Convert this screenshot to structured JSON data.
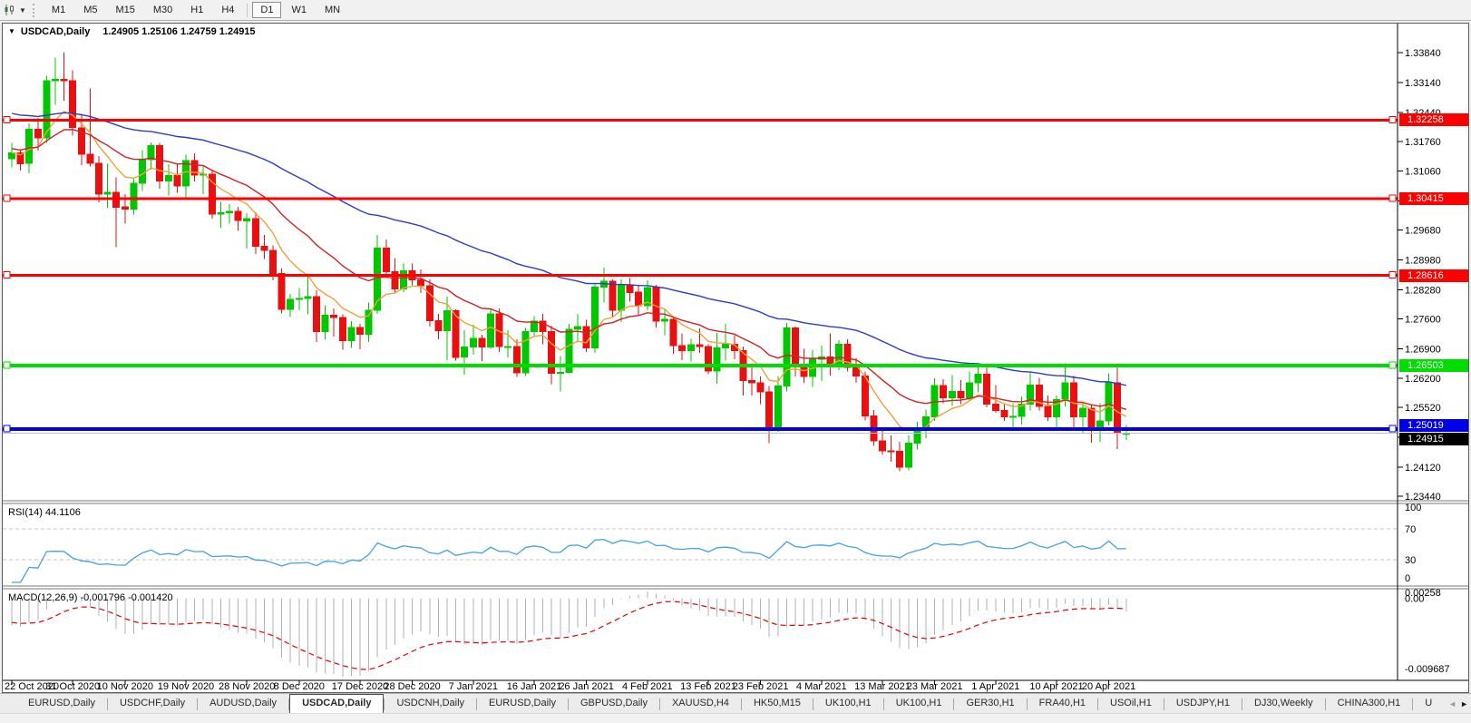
{
  "toolbar": {
    "timeframe_groups": [
      [
        "M1",
        "M5",
        "M15",
        "M30",
        "H1",
        "H4"
      ],
      [
        "D1",
        "W1",
        "MN"
      ]
    ],
    "active_timeframe": "D1"
  },
  "chart": {
    "symbol_title": "USDCAD,Daily",
    "ohlc_line": "1.24905 1.25106 1.24759 1.24915"
  },
  "indicators": {
    "rsi_label": "RSI(14) 44.1106",
    "macd_label": "MACD(12,26,9) -0.001796 -0.001420"
  },
  "chart_data": {
    "type": "candlestick",
    "symbol": "USDCAD",
    "timeframe": "Daily",
    "last_ohlc": {
      "open": 1.24905,
      "high": 1.25106,
      "low": 1.24759,
      "close": 1.24915
    },
    "colors": {
      "bull": "#00c800",
      "bear": "#e81010",
      "current_line": "#c0c0c0",
      "current_chip_bg": "#000000"
    },
    "price_ticks": [
      "1.33840",
      "1.33140",
      "1.32440",
      "1.31760",
      "1.31060",
      "1.30360",
      "1.29680",
      "1.28980",
      "1.28280",
      "1.27600",
      "1.26900",
      "1.26200",
      "1.25520",
      "1.24820",
      "1.24120",
      "1.23440"
    ],
    "hlines": [
      {
        "price": 1.32258,
        "label": "1.32258",
        "color": "#ff0000",
        "thickness": 3
      },
      {
        "price": 1.30415,
        "label": "1.30415",
        "color": "#ff0000",
        "thickness": 3
      },
      {
        "price": 1.28616,
        "label": "1.28616",
        "color": "#ff0000",
        "thickness": 3
      },
      {
        "price": 1.26503,
        "label": "1.26503",
        "color": "#00dd00",
        "thickness": 4
      },
      {
        "price": 1.25019,
        "label": "1.25019",
        "color": "#0000e6",
        "thickness": 4
      }
    ],
    "current_price": {
      "price": 1.24915,
      "label": "1.24915"
    },
    "moving_averages": [
      {
        "name": "fast",
        "period": 8,
        "color": "#eea23a",
        "seed": 1.315
      },
      {
        "name": "medium",
        "period": 20,
        "color": "#d42020",
        "seed": 1.316
      },
      {
        "name": "slow",
        "period": 55,
        "color": "#2b3cc8",
        "seed": 1.3245
      }
    ],
    "rsi": {
      "period": 14,
      "value": 44.1106,
      "color": "#47a0e0",
      "levels": [
        70,
        30
      ],
      "axis_labels": [
        "100",
        "70",
        "30",
        "0"
      ]
    },
    "macd": {
      "fast": 12,
      "slow": 26,
      "signal": 9,
      "histogram_color": "#b2b2b2",
      "signal_color": "#e80000",
      "axis_labels": {
        "top": "0.00258",
        "zero": "0.00",
        "bottom": "-0.009687"
      },
      "seeds": {
        "fast": 1.318,
        "slow": 1.3215,
        "signal": -0.003
      }
    },
    "date_ticks": [
      {
        "label": "22 Oct 2020",
        "i": 0
      },
      {
        "label": "31 Oct 2020",
        "i": 7
      },
      {
        "label": "10 Nov 2020",
        "i": 13
      },
      {
        "label": "19 Nov 2020",
        "i": 20
      },
      {
        "label": "28 Nov 2020",
        "i": 27
      },
      {
        "label": "8 Dec 2020",
        "i": 33
      },
      {
        "label": "17 Dec 2020",
        "i": 40
      },
      {
        "label": "28 Dec 2020",
        "i": 46
      },
      {
        "label": "7 Jan 2021",
        "i": 53
      },
      {
        "label": "16 Jan 2021",
        "i": 60
      },
      {
        "label": "26 Jan 2021",
        "i": 66
      },
      {
        "label": "4 Feb 2021",
        "i": 73
      },
      {
        "label": "13 Feb 2021",
        "i": 80
      },
      {
        "label": "23 Feb 2021",
        "i": 86
      },
      {
        "label": "4 Mar 2021",
        "i": 93
      },
      {
        "label": "13 Mar 2021",
        "i": 100
      },
      {
        "label": "23 Mar 2021",
        "i": 106
      },
      {
        "label": "1 Apr 2021",
        "i": 113
      },
      {
        "label": "10 Apr 2021",
        "i": 120
      },
      {
        "label": "20 Apr 2021",
        "i": 126
      }
    ],
    "candles": [
      [
        1.3135,
        1.3172,
        1.3115,
        1.3149
      ],
      [
        1.3149,
        1.3158,
        1.3108,
        1.3124
      ],
      [
        1.3124,
        1.3218,
        1.3101,
        1.3204
      ],
      [
        1.3204,
        1.3231,
        1.3154,
        1.3184
      ],
      [
        1.3184,
        1.333,
        1.3172,
        1.3318
      ],
      [
        1.3318,
        1.3372,
        1.3262,
        1.3321
      ],
      [
        1.3321,
        1.3384,
        1.3271,
        1.3318
      ],
      [
        1.3318,
        1.3342,
        1.3189,
        1.3208
      ],
      [
        1.3208,
        1.324,
        1.312,
        1.3146
      ],
      [
        1.3146,
        1.33,
        1.3117,
        1.3125
      ],
      [
        1.3125,
        1.3142,
        1.3033,
        1.3052
      ],
      [
        1.3052,
        1.3123,
        1.302,
        1.3057
      ],
      [
        1.3057,
        1.3092,
        1.2928,
        1.3022
      ],
      [
        1.3022,
        1.3052,
        1.2983,
        1.3017
      ],
      [
        1.3017,
        1.3089,
        1.3004,
        1.3078
      ],
      [
        1.3078,
        1.3155,
        1.306,
        1.3133
      ],
      [
        1.3133,
        1.3173,
        1.311,
        1.3166
      ],
      [
        1.3166,
        1.3172,
        1.3065,
        1.3083
      ],
      [
        1.3083,
        1.3122,
        1.3049,
        1.3096
      ],
      [
        1.3096,
        1.3124,
        1.3055,
        1.3071
      ],
      [
        1.3071,
        1.3145,
        1.3045,
        1.3131
      ],
      [
        1.3131,
        1.3148,
        1.3082,
        1.3097
      ],
      [
        1.3097,
        1.3117,
        1.3052,
        1.3099
      ],
      [
        1.3099,
        1.3108,
        1.2995,
        1.3005
      ],
      [
        1.3005,
        1.3034,
        1.2972,
        1.3009
      ],
      [
        1.3009,
        1.3029,
        1.2983,
        1.3012
      ],
      [
        1.3012,
        1.3022,
        1.2966,
        1.299
      ],
      [
        1.299,
        1.3008,
        1.2925,
        1.2995
      ],
      [
        1.2995,
        1.301,
        1.2912,
        1.293
      ],
      [
        1.293,
        1.2956,
        1.29,
        1.292
      ],
      [
        1.292,
        1.2932,
        1.285,
        1.2866
      ],
      [
        1.2866,
        1.2878,
        1.2773,
        1.2782
      ],
      [
        1.2782,
        1.2818,
        1.2764,
        1.2806
      ],
      [
        1.2806,
        1.2832,
        1.278,
        1.2808
      ],
      [
        1.2808,
        1.2866,
        1.277,
        1.2812
      ],
      [
        1.2812,
        1.2827,
        1.2706,
        1.273
      ],
      [
        1.273,
        1.2792,
        1.2712,
        1.2768
      ],
      [
        1.2768,
        1.2784,
        1.2718,
        1.2763
      ],
      [
        1.2763,
        1.277,
        1.2688,
        1.2709
      ],
      [
        1.2709,
        1.2755,
        1.2692,
        1.274
      ],
      [
        1.274,
        1.2748,
        1.2689,
        1.2724
      ],
      [
        1.2724,
        1.2798,
        1.2706,
        1.278
      ],
      [
        1.278,
        1.2957,
        1.2772,
        1.2926
      ],
      [
        1.2926,
        1.2946,
        1.2855,
        1.287
      ],
      [
        1.287,
        1.2902,
        1.282,
        1.283
      ],
      [
        1.283,
        1.289,
        1.2822,
        1.2873
      ],
      [
        1.2873,
        1.289,
        1.2838,
        1.2851
      ],
      [
        1.2851,
        1.2876,
        1.282,
        1.2837
      ],
      [
        1.2837,
        1.2852,
        1.2742,
        1.2756
      ],
      [
        1.2756,
        1.2772,
        1.2712,
        1.2732
      ],
      [
        1.2732,
        1.2812,
        1.2663,
        1.2779
      ],
      [
        1.2779,
        1.2782,
        1.2662,
        1.267
      ],
      [
        1.267,
        1.2733,
        1.2629,
        1.2694
      ],
      [
        1.2694,
        1.2746,
        1.2676,
        1.2714
      ],
      [
        1.2714,
        1.2723,
        1.2661,
        1.2694
      ],
      [
        1.2694,
        1.2784,
        1.269,
        1.2771
      ],
      [
        1.2771,
        1.2784,
        1.2682,
        1.2695
      ],
      [
        1.2695,
        1.2733,
        1.2669,
        1.2695
      ],
      [
        1.2695,
        1.2712,
        1.2624,
        1.2633
      ],
      [
        1.2633,
        1.2738,
        1.2626,
        1.273
      ],
      [
        1.273,
        1.2766,
        1.2718,
        1.2755
      ],
      [
        1.2755,
        1.2772,
        1.27,
        1.273
      ],
      [
        1.273,
        1.2744,
        1.2607,
        1.2632
      ],
      [
        1.2632,
        1.2673,
        1.259,
        1.2634
      ],
      [
        1.2634,
        1.2748,
        1.2632,
        1.2735
      ],
      [
        1.2735,
        1.2772,
        1.2705,
        1.2742
      ],
      [
        1.2742,
        1.2758,
        1.2682,
        1.2692
      ],
      [
        1.2692,
        1.2842,
        1.268,
        1.2834
      ],
      [
        1.2834,
        1.288,
        1.2798,
        1.2848
      ],
      [
        1.2848,
        1.2852,
        1.2765,
        1.278
      ],
      [
        1.278,
        1.2852,
        1.2752,
        1.284
      ],
      [
        1.284,
        1.2856,
        1.28,
        1.2822
      ],
      [
        1.2822,
        1.284,
        1.2768,
        1.2791
      ],
      [
        1.2791,
        1.285,
        1.278,
        1.2833
      ],
      [
        1.2833,
        1.284,
        1.274,
        1.2755
      ],
      [
        1.2755,
        1.2782,
        1.2722,
        1.2759
      ],
      [
        1.2759,
        1.2762,
        1.2678,
        1.2697
      ],
      [
        1.2697,
        1.2726,
        1.2663,
        1.2685
      ],
      [
        1.2685,
        1.2713,
        1.266,
        1.2699
      ],
      [
        1.2699,
        1.2737,
        1.268,
        1.2695
      ],
      [
        1.2695,
        1.27,
        1.263,
        1.2638
      ],
      [
        1.2638,
        1.2727,
        1.2608,
        1.2692
      ],
      [
        1.2692,
        1.2748,
        1.2662,
        1.27
      ],
      [
        1.27,
        1.2722,
        1.2665,
        1.2685
      ],
      [
        1.2685,
        1.2695,
        1.258,
        1.2615
      ],
      [
        1.2615,
        1.265,
        1.258,
        1.261
      ],
      [
        1.261,
        1.2625,
        1.256,
        1.2589
      ],
      [
        1.2589,
        1.2602,
        1.2468,
        1.2504
      ],
      [
        1.2504,
        1.2626,
        1.2495,
        1.2602
      ],
      [
        1.2602,
        1.275,
        1.259,
        1.2738
      ],
      [
        1.2738,
        1.2742,
        1.2625,
        1.2647
      ],
      [
        1.2647,
        1.269,
        1.261,
        1.2625
      ],
      [
        1.2625,
        1.2688,
        1.26,
        1.2665
      ],
      [
        1.2665,
        1.2697,
        1.2614,
        1.267
      ],
      [
        1.267,
        1.2726,
        1.2627,
        1.2655
      ],
      [
        1.2655,
        1.271,
        1.264,
        1.27
      ],
      [
        1.27,
        1.2712,
        1.2636,
        1.2646
      ],
      [
        1.2646,
        1.2668,
        1.261,
        1.2626
      ],
      [
        1.2626,
        1.2636,
        1.2522,
        1.2532
      ],
      [
        1.2532,
        1.2546,
        1.2462,
        1.2474
      ],
      [
        1.2474,
        1.2502,
        1.2441,
        1.245
      ],
      [
        1.245,
        1.2487,
        1.2425,
        1.2449
      ],
      [
        1.2449,
        1.2472,
        1.2402,
        1.2412
      ],
      [
        1.2412,
        1.2486,
        1.2405,
        1.2468
      ],
      [
        1.2468,
        1.2518,
        1.2453,
        1.25
      ],
      [
        1.25,
        1.2547,
        1.248,
        1.253
      ],
      [
        1.253,
        1.262,
        1.252,
        1.2603
      ],
      [
        1.2603,
        1.2618,
        1.2562,
        1.2575
      ],
      [
        1.2575,
        1.2628,
        1.2556,
        1.259
      ],
      [
        1.259,
        1.2616,
        1.256,
        1.2575
      ],
      [
        1.2575,
        1.2636,
        1.2566,
        1.261
      ],
      [
        1.261,
        1.2648,
        1.2588,
        1.263
      ],
      [
        1.263,
        1.2652,
        1.2552,
        1.256
      ],
      [
        1.256,
        1.2605,
        1.254,
        1.2545
      ],
      [
        1.2545,
        1.256,
        1.2521,
        1.253
      ],
      [
        1.253,
        1.2562,
        1.25,
        1.2531
      ],
      [
        1.2531,
        1.2578,
        1.2512,
        1.256
      ],
      [
        1.256,
        1.2634,
        1.2545,
        1.2605
      ],
      [
        1.2605,
        1.2622,
        1.2545,
        1.2555
      ],
      [
        1.2555,
        1.258,
        1.2521,
        1.253
      ],
      [
        1.253,
        1.258,
        1.2506,
        1.2571
      ],
      [
        1.2571,
        1.265,
        1.2555,
        1.261
      ],
      [
        1.261,
        1.2627,
        1.2501,
        1.253
      ],
      [
        1.253,
        1.2566,
        1.2493,
        1.255
      ],
      [
        1.255,
        1.256,
        1.247,
        1.2505
      ],
      [
        1.2505,
        1.2562,
        1.2472,
        1.252
      ],
      [
        1.252,
        1.2632,
        1.251,
        1.261
      ],
      [
        1.261,
        1.2654,
        1.2455,
        1.2492
      ],
      [
        1.24905,
        1.25106,
        1.24759,
        1.24915
      ]
    ]
  },
  "tabs": {
    "items": [
      "EURUSD,Daily",
      "USDCHF,Daily",
      "AUDUSD,Daily",
      "USDCAD,Daily",
      "USDCNH,Daily",
      "EURUSD,Daily",
      "GBPUSD,Daily",
      "XAUUSD,H4",
      "HK50,M15",
      "UK100,H1",
      "UK100,H1",
      "GER30,H1",
      "FRA40,H1",
      "USOil,H1",
      "USDJPY,H1",
      "DJ30,Weekly",
      "CHINA300,H1"
    ],
    "active_index": 3,
    "truncated_last": "U"
  }
}
